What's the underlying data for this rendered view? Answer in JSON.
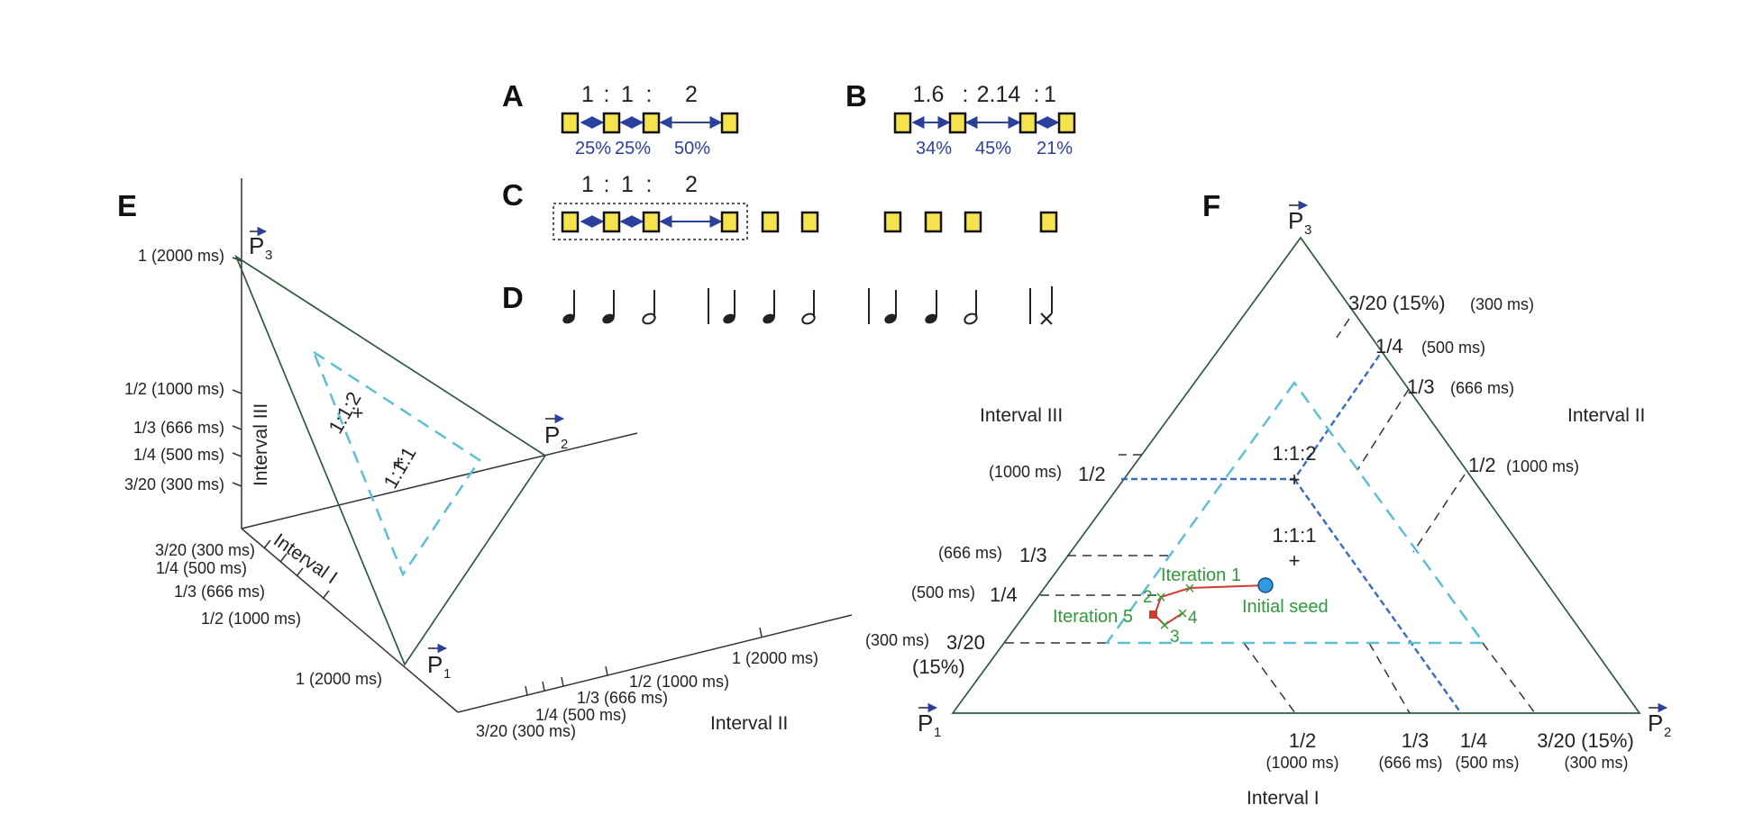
{
  "panels": {
    "a": {
      "letter": "A",
      "ratio": [
        "1",
        ":",
        "1",
        ":",
        "2"
      ],
      "percents": [
        "25%",
        "25%",
        "50%"
      ]
    },
    "b": {
      "letter": "B",
      "ratio": [
        "1.6",
        ":",
        "2.14",
        ":",
        "1"
      ],
      "percents": [
        "34%",
        "45%",
        "21%"
      ]
    },
    "c": {
      "letter": "C",
      "ratio": [
        "1",
        ":",
        "1",
        ":",
        "2"
      ]
    },
    "d": {
      "letter": "D"
    },
    "e": {
      "letter": "E"
    },
    "f": {
      "letter": "F"
    }
  },
  "panel_e": {
    "vertices": {
      "p1": "P",
      "p2": "P",
      "p3": "P",
      "sub1": "1",
      "sub2": "2",
      "sub3": "3"
    },
    "interval3_label": "Interval III",
    "interval1_label": "Interval I",
    "interval2_label": "Interval II",
    "axis3_ticks": [
      "1 (2000 ms)",
      "1/2 (1000 ms)",
      "1/3 (666 ms)",
      "1/4 (500 ms)",
      "3/20 (300 ms)"
    ],
    "axis1_ticks": [
      "3/20 (300 ms)",
      "1/4 (500 ms)",
      "1/3 (666 ms)",
      "1/2 (1000 ms)",
      "1 (2000 ms)"
    ],
    "axis2_ticks": [
      "3/20 (300 ms)",
      "1/4 (500 ms)",
      "1/3 (666 ms)",
      "1/2 (1000 ms)",
      "1 (2000 ms)"
    ],
    "point_112": "1:1:2",
    "point_111": "1:1:1"
  },
  "panel_f": {
    "vertices": {
      "p1": "P",
      "p2": "P",
      "p3": "P",
      "sub1": "1",
      "sub2": "2",
      "sub3": "3"
    },
    "interval3_label": "Interval III",
    "interval2_label": "Interval II",
    "interval1_label": "Interval I",
    "right_ticks": [
      {
        "value": "3/20 (15%)",
        "ms": "(300 ms)"
      },
      {
        "value": "1/4",
        "ms": "(500 ms)"
      },
      {
        "value": "1/3",
        "ms": "(666 ms)"
      },
      {
        "value": "1/2",
        "ms": "(1000 ms)"
      }
    ],
    "left_ticks": [
      {
        "value": "1/2",
        "ms": "(1000 ms)"
      },
      {
        "value": "1/3",
        "ms": "(666 ms)"
      },
      {
        "value": "1/4",
        "ms": "(500 ms)"
      },
      {
        "value": "3/20",
        "ms": "(300 ms)",
        "extra": "(15%)"
      }
    ],
    "bottom_ticks": [
      {
        "value": "1/2",
        "ms": "(1000 ms)"
      },
      {
        "value": "1/3",
        "ms": "(666 ms)"
      },
      {
        "value": "1/4",
        "ms": "(500 ms)"
      },
      {
        "value": "3/20 (15%)",
        "ms": "(300 ms)"
      }
    ],
    "point_112": "1:1:2",
    "point_111": "1:1:1",
    "iteration_1": "Iteration 1",
    "iteration_5": "Iteration 5",
    "initial_seed": "Initial seed",
    "step_labels": [
      "2",
      "3",
      "4"
    ]
  },
  "colors": {
    "square_fill": "#f4e34d",
    "arrow_blue": "#2b3f9c",
    "cyan_dashed": "#5bbfd6",
    "blue_dashed": "#3a6fc0",
    "triangle_edge": "#2e5a3e",
    "iteration_green": "#2f9a3a",
    "path_red": "#d33a2f",
    "seed_blue": "#2e9be0"
  }
}
